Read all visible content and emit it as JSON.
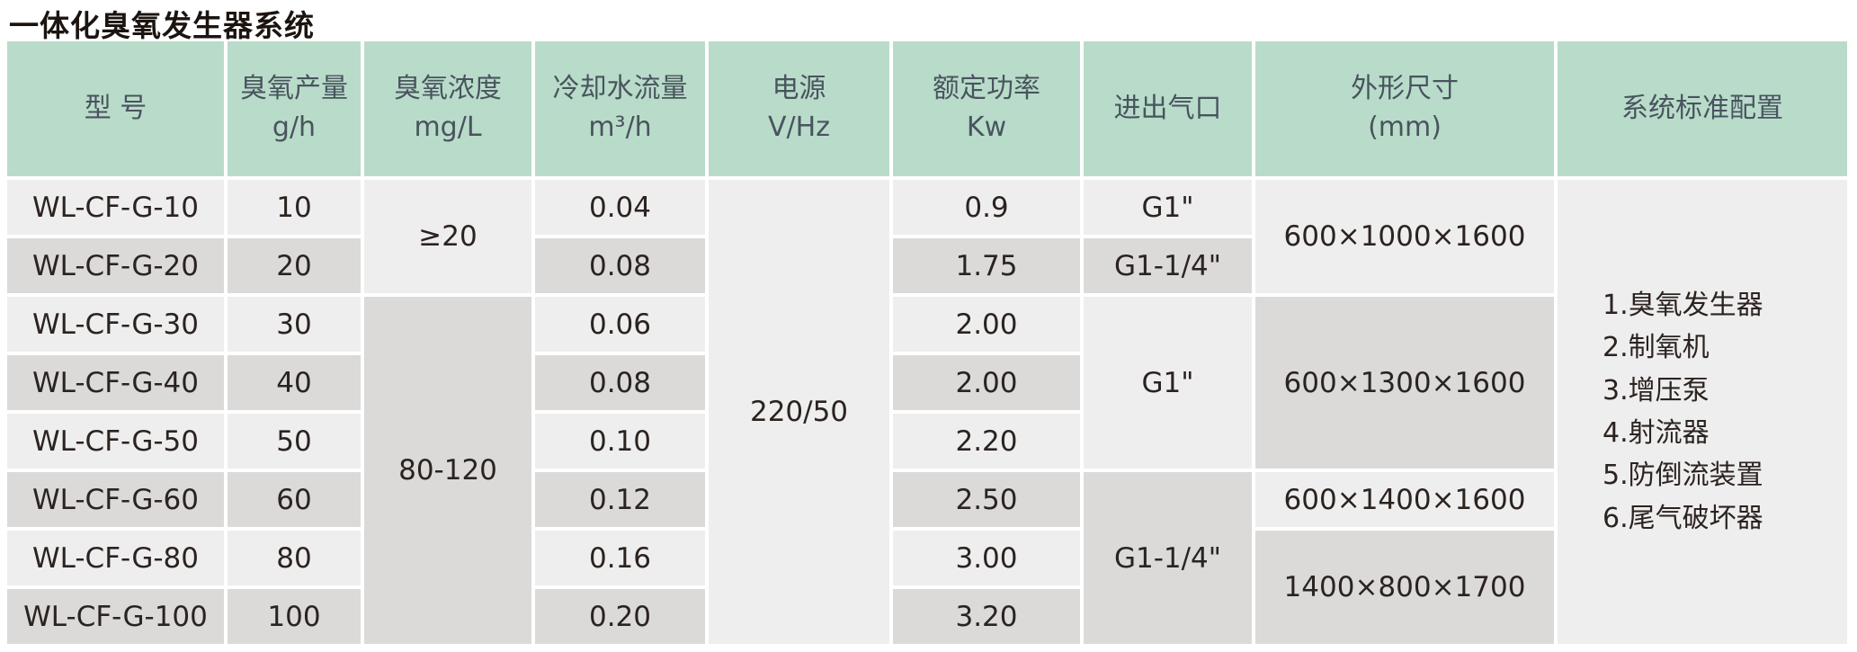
{
  "title": "一体化臭氧发生器系统",
  "colors": {
    "header_bg": "#b9dcca",
    "header_text": "#49545e",
    "row_light": "#efeeee",
    "row_dark": "#dbdad9",
    "body_text": "#2b2320"
  },
  "table": {
    "headers": [
      "型 号",
      "臭氧产量\ng/h",
      "臭氧浓度\nmg/L",
      "冷却水流量\nm³/h",
      "电源\nV/Hz",
      "额定功率\nKw",
      "进出气口",
      "外形尺寸\n(mm)",
      "系统标准配置"
    ],
    "rows": [
      {
        "model": "WL-CF-G-10",
        "output": "10",
        "flow": "0.04",
        "power": "0.9",
        "port": "G1\""
      },
      {
        "model": "WL-CF-G-20",
        "output": "20",
        "flow": "0.08",
        "power": "1.75",
        "port": "G1-1/4\""
      },
      {
        "model": "WL-CF-G-30",
        "output": "30",
        "flow": "0.06",
        "power": "2.00"
      },
      {
        "model": "WL-CF-G-40",
        "output": "40",
        "flow": "0.08",
        "power": "2.00"
      },
      {
        "model": "WL-CF-G-50",
        "output": "50",
        "flow": "0.10",
        "power": "2.20"
      },
      {
        "model": "WL-CF-G-60",
        "output": "60",
        "flow": "0.12",
        "power": "2.50"
      },
      {
        "model": "WL-CF-G-80",
        "output": "80",
        "flow": "0.16",
        "power": "3.00"
      },
      {
        "model": "WL-CF-G-100",
        "output": "100",
        "flow": "0.20",
        "power": "3.20"
      }
    ],
    "merged": {
      "concentration_rows_1_2": "≥20",
      "concentration_rows_3_8": "80-120",
      "power_supply_all_rows": "220/50",
      "port_rows_3_5": "G1\"",
      "port_rows_6_8": "G1-1/4\"",
      "dimensions_rows_1_2": "600×1000×1600",
      "dimensions_rows_3_5": "600×1300×1600",
      "dimensions_row_6": "600×1400×1600",
      "dimensions_rows_7_8": "1400×800×1700"
    },
    "config": [
      "1.臭氧发生器",
      "2.制氧机",
      "3.增压泵",
      "4.射流器",
      "5.防倒流装置",
      "6.尾气破坏器"
    ]
  }
}
